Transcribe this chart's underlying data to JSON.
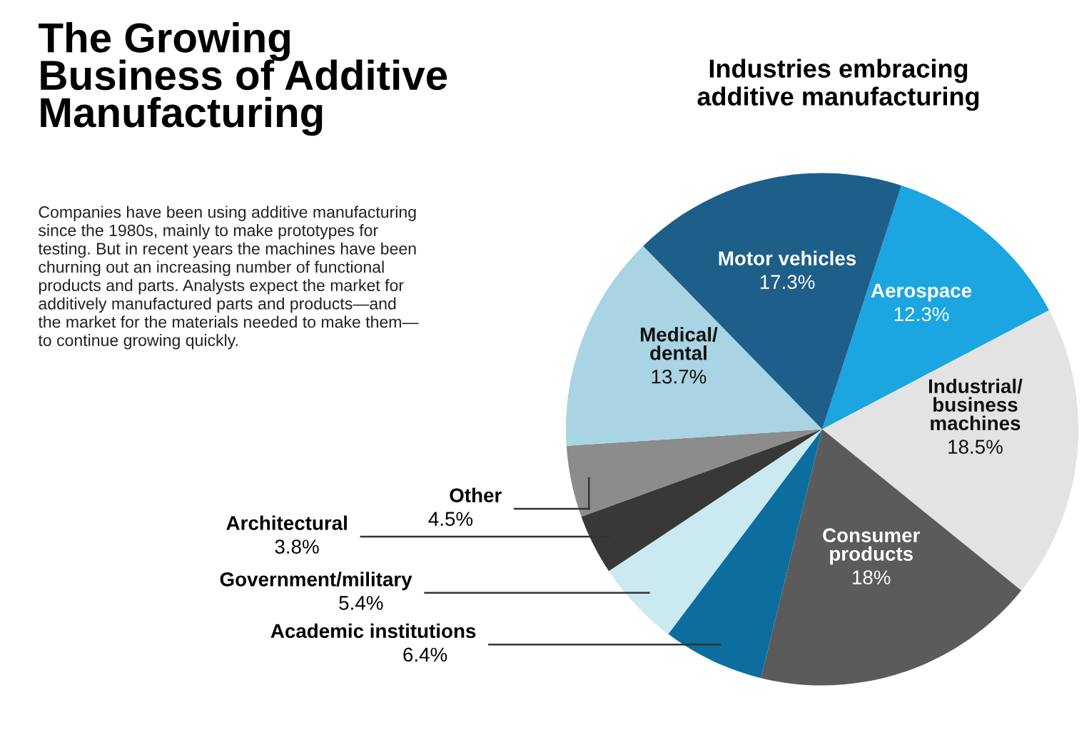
{
  "chart_data": {
    "type": "pie",
    "title": "The Growing\nBusiness of Additive\nManufacturing",
    "subtitle": "Industries embracing\nadditive manufacturing",
    "annotations": [
      "Companies have been using additive manufacturing\nsince the 1980s, mainly to make prototypes for\ntesting. But in recent years the machines have been\nchurning out an increasing number of functional\nproducts and parts. Analysts expect the market for\nadditively manufactured parts and products—and\nthe market for the materials needed to make them—\nto continue growing quickly."
    ],
    "categories": [
      "Aerospace",
      "Industrial/\nbusiness\nmachines",
      "Consumer\nproducts",
      "Academic institutions",
      "Government/military",
      "Architectural",
      "Other",
      "Medical/\ndental",
      "Motor vehicles"
    ],
    "values": [
      12.3,
      18.5,
      18,
      6.4,
      5.4,
      3.8,
      4.5,
      13.7,
      17.3
    ],
    "value_labels": [
      "12.3%",
      "18.5%",
      "18%",
      "6.4%",
      "5.4%",
      "3.8%",
      "4.5%",
      "13.7%",
      "17.3%"
    ],
    "colors": [
      "#1ba5e1",
      "#e3e3e3",
      "#5b5b5b",
      "#0b6e9f",
      "#cbe9f1",
      "#383838",
      "#8c8c8c",
      "#a8d4e4",
      "#1e5f8a"
    ]
  }
}
